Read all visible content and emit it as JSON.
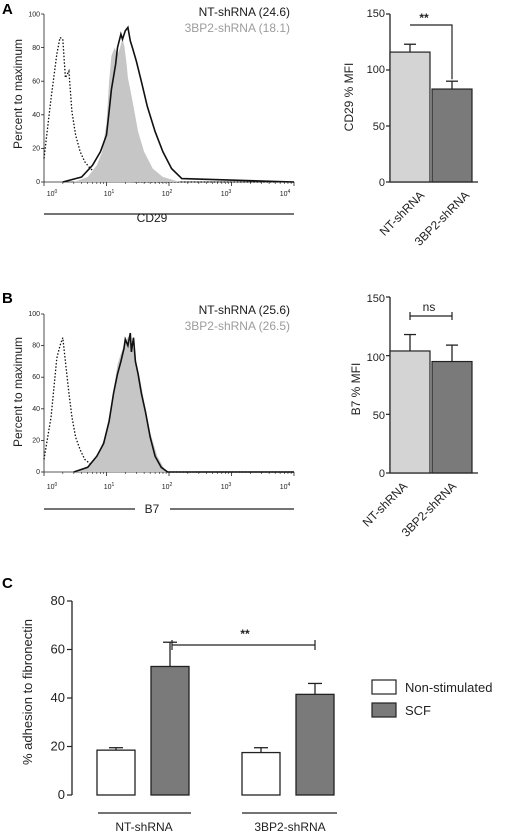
{
  "colors": {
    "nt_bar": "#d4d4d4",
    "kd_bar": "#7a7a7a",
    "hist_fill": "#c6c6c6",
    "nt_legend_text": "#1a1a1a",
    "kd_legend_text": "#9c9c9c",
    "axis": "#222222"
  },
  "chart_data": [
    {
      "panel": "A",
      "type": "histogram",
      "x_scale": "log",
      "xlim": [
        1,
        10000
      ],
      "ylim": [
        0,
        100
      ],
      "xlabel": "CD29",
      "ylabel": "Percent to maximum",
      "x_ticks": [
        "10⁰",
        "10¹",
        "10²",
        "10³",
        "10⁴"
      ],
      "y_ticks": [
        "0",
        "20",
        "40",
        "60",
        "80",
        "100"
      ],
      "legend": [
        {
          "name": "NT-shRNA",
          "value": "(24.6)"
        },
        {
          "name": "3BP2-shRNA",
          "value": "(18.1)"
        }
      ],
      "series": [
        {
          "role": "isotype",
          "style": "dotted",
          "x": [
            1,
            1.3,
            1.6,
            1.8,
            2.0,
            2.2,
            2.5,
            2.8,
            3.2,
            3.8,
            4.5,
            5.5,
            7,
            10,
            15,
            30,
            100,
            10000
          ],
          "y": [
            14,
            50,
            76,
            86,
            85,
            62,
            66,
            42,
            28,
            18,
            12,
            8,
            5,
            3,
            1,
            0,
            0,
            0
          ]
        },
        {
          "role": "3BP2-shRNA",
          "style": "filled",
          "x": [
            3,
            5,
            7,
            8.5,
            10,
            11,
            12,
            13.5,
            15,
            16.5,
            18,
            19.5,
            21,
            22,
            24,
            27,
            32,
            40,
            55,
            80,
            150,
            10000
          ],
          "y": [
            0,
            3,
            10,
            18,
            35,
            60,
            75,
            80,
            76,
            80,
            86,
            80,
            70,
            62,
            55,
            45,
            30,
            18,
            8,
            3,
            0,
            0
          ]
        },
        {
          "role": "NT-shRNA",
          "style": "solid",
          "x": [
            2,
            4,
            6,
            8,
            10,
            11,
            12,
            14,
            15,
            17,
            18,
            20,
            22,
            24,
            26,
            30,
            36,
            45,
            60,
            80,
            110,
            160,
            10000
          ],
          "y": [
            0,
            3,
            10,
            18,
            28,
            42,
            55,
            70,
            80,
            88,
            85,
            90,
            92,
            84,
            80,
            72,
            60,
            45,
            30,
            18,
            8,
            2,
            0
          ]
        }
      ]
    },
    {
      "panel": "A",
      "type": "bar",
      "categories": [
        "NT-shRNA",
        "3BP2-shRNA"
      ],
      "values": [
        116,
        83
      ],
      "errors": [
        7,
        7
      ],
      "ylabel": "CD29 % MFI",
      "ylim": [
        0,
        150
      ],
      "y_ticks": [
        "0",
        "50",
        "100",
        "150"
      ],
      "significance": "**"
    },
    {
      "panel": "B",
      "type": "histogram",
      "x_scale": "log",
      "xlim": [
        1,
        10000
      ],
      "ylim": [
        0,
        100
      ],
      "xlabel": "B7",
      "ylabel": "Percent to maximum",
      "x_ticks": [
        "10⁰",
        "10¹",
        "10²",
        "10³",
        "10⁴"
      ],
      "y_ticks": [
        "0",
        "20",
        "40",
        "60",
        "80",
        "100"
      ],
      "legend": [
        {
          "name": "NT-shRNA",
          "value": "(25.6)"
        },
        {
          "name": "3BP2-shRNA",
          "value": "(26.5)"
        }
      ],
      "series": [
        {
          "role": "isotype",
          "style": "dotted",
          "x": [
            1,
            1.3,
            1.6,
            1.8,
            2.0,
            2.2,
            2.5,
            2.8,
            3.2,
            3.8,
            4.5,
            6,
            8,
            10,
            13,
            17,
            20,
            25,
            30,
            36,
            45,
            60,
            100,
            10000
          ],
          "y": [
            8,
            35,
            72,
            80,
            85,
            70,
            50,
            35,
            22,
            14,
            8,
            4,
            2,
            2,
            4,
            8,
            10,
            12,
            12,
            8,
            5,
            2,
            0,
            0
          ]
        },
        {
          "role": "3BP2-shRNA",
          "style": "filled",
          "x": [
            3,
            5,
            7,
            9,
            11,
            13,
            15,
            17,
            19,
            21,
            23,
            25,
            27,
            30,
            34,
            40,
            50,
            65,
            90,
            10000
          ],
          "y": [
            0,
            3,
            10,
            20,
            35,
            52,
            68,
            75,
            80,
            84,
            86,
            82,
            78,
            70,
            60,
            45,
            25,
            10,
            0,
            0
          ]
        },
        {
          "role": "NT-shRNA",
          "style": "solid",
          "x": [
            3,
            5,
            7,
            9,
            11,
            13,
            15,
            17,
            19,
            20,
            22,
            24,
            25,
            27,
            29,
            32,
            36,
            42,
            50,
            60,
            75,
            95,
            10000
          ],
          "y": [
            0,
            3,
            10,
            18,
            32,
            50,
            62,
            70,
            78,
            84,
            80,
            88,
            76,
            85,
            70,
            62,
            50,
            38,
            22,
            10,
            3,
            0,
            0
          ]
        }
      ]
    },
    {
      "panel": "B",
      "type": "bar",
      "categories": [
        "NT-shRNA",
        "3BP2-shRNA"
      ],
      "values": [
        104,
        95
      ],
      "errors": [
        14,
        14
      ],
      "ylabel": "B7 % MFI",
      "ylim": [
        0,
        150
      ],
      "y_ticks": [
        "0",
        "50",
        "100",
        "150"
      ],
      "significance": "ns"
    },
    {
      "panel": "C",
      "type": "bar",
      "categories": [
        "NT-shRNA",
        "3BP2-shRNA"
      ],
      "series": [
        {
          "name": "Non-stimulated",
          "values": [
            18.5,
            17.5
          ],
          "errors": [
            1,
            2
          ]
        },
        {
          "name": "SCF",
          "values": [
            53,
            41.5
          ],
          "errors": [
            10,
            4.5
          ]
        }
      ],
      "ylabel": "% adhesion to fibronectin",
      "ylim": [
        0,
        80
      ],
      "y_ticks": [
        "0",
        "20",
        "40",
        "60",
        "80"
      ],
      "significance": "**",
      "legend_position": "right"
    }
  ],
  "panels": {
    "a": {
      "letter": "A",
      "hist": {
        "ylabel": "Percent to maximum",
        "xlabel": "CD29",
        "legend_nt": "NT-shRNA (24.6)",
        "legend_kd": "3BP2-shRNA (18.1)",
        "yt0": "0",
        "yt20": "20",
        "yt40": "40",
        "yt60": "60",
        "yt80": "80",
        "yt100": "100",
        "xt0": "10",
        "xt1": "10",
        "xt2": "10",
        "xt3": "10",
        "xt4": "10",
        "xe0": "0",
        "xe1": "1",
        "xe2": "2",
        "xe3": "3",
        "xe4": "4"
      },
      "bars": {
        "ylabel": "CD29 % MFI",
        "cat1": "NT-shRNA",
        "cat2": "3BP2-shRNA",
        "sig": "**",
        "yt0": "0",
        "yt50": "50",
        "yt100": "100",
        "yt150": "150"
      }
    },
    "b": {
      "letter": "B",
      "hist": {
        "ylabel": "Percent to maximum",
        "xlabel": "B7",
        "legend_nt": "NT-shRNA (25.6)",
        "legend_kd": "3BP2-shRNA (26.5)",
        "yt0": "0",
        "yt20": "20",
        "yt40": "40",
        "yt60": "60",
        "yt80": "80",
        "yt100": "100",
        "xt0": "10",
        "xt1": "10",
        "xt2": "10",
        "xt3": "10",
        "xt4": "10",
        "xe0": "0",
        "xe1": "1",
        "xe2": "2",
        "xe3": "3",
        "xe4": "4"
      },
      "bars": {
        "ylabel": "B7 % MFI",
        "cat1": "NT-shRNA",
        "cat2": "3BP2-shRNA",
        "sig": "ns",
        "yt0": "0",
        "yt50": "50",
        "yt100": "100",
        "yt150": "150"
      }
    },
    "c": {
      "letter": "C",
      "ylabel": "% adhesion to fibronectin",
      "yt0": "0",
      "yt20": "20",
      "yt40": "40",
      "yt60": "60",
      "yt80": "80",
      "cat1": "NT-shRNA",
      "cat2": "3BP2-shRNA",
      "sig": "**",
      "legend1": "Non-stimulated",
      "legend2": "SCF"
    }
  }
}
